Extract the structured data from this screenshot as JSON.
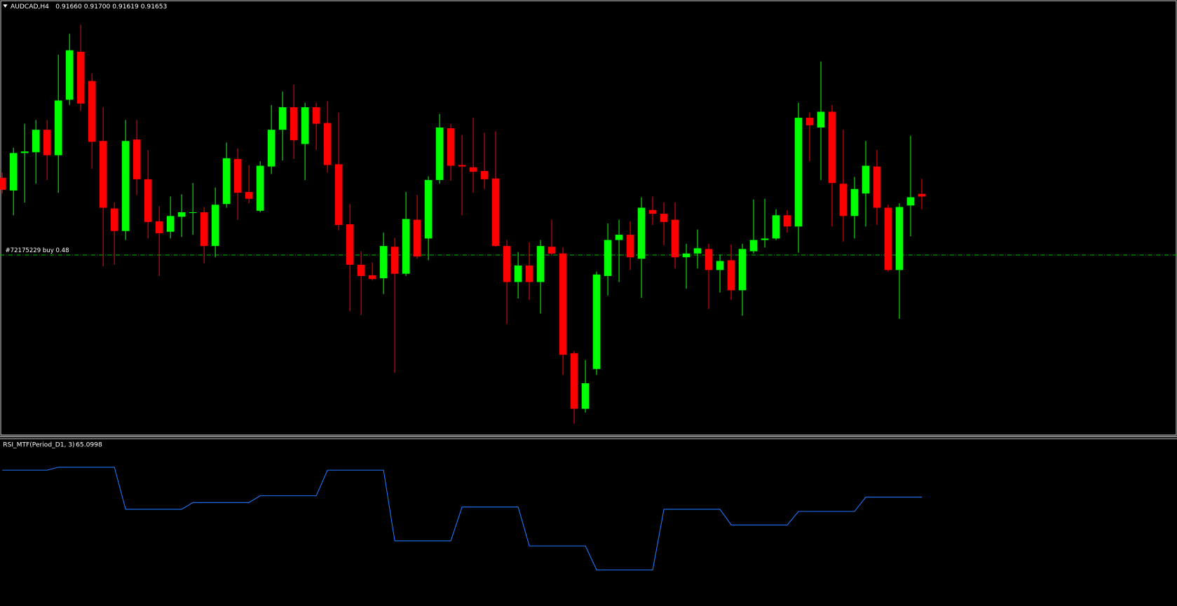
{
  "chart_data": [
    {
      "type": "candlestick",
      "symbol": "AUDCAD,H4",
      "quote": "0.91660 0.91700 0.91619 0.91653",
      "up_color": "#00ff00",
      "down_color": "#ff0000",
      "ylim": [
        0.91017,
        0.92177
      ],
      "open": [
        0.91703,
        0.91669,
        0.91769,
        0.91771,
        0.91831,
        0.91763,
        0.91911,
        0.92039,
        0.91961,
        0.91801,
        0.91621,
        0.91561,
        0.91805,
        0.91699,
        0.91587,
        0.91559,
        0.91599,
        0.91609,
        0.91611,
        0.91521,
        0.91633,
        0.91753,
        0.91665,
        0.91615,
        0.91733,
        0.91831,
        0.91891,
        0.91793,
        0.91891,
        0.91849,
        0.91739,
        0.91579,
        0.91471,
        0.91443,
        0.91435,
        0.91519,
        0.91447,
        0.91591,
        0.91541,
        0.91697,
        0.91835,
        0.91737,
        0.91731,
        0.91721,
        0.91701,
        0.91521,
        0.91425,
        0.91469,
        0.91425,
        0.91519,
        0.91501,
        0.91235,
        0.91087,
        0.91193,
        0.91441,
        0.91537,
        0.91551,
        0.91487,
        0.91617,
        0.91607,
        0.91591,
        0.91491,
        0.91501,
        0.91513,
        0.91457,
        0.91483,
        0.91403,
        0.91507,
        0.91537,
        0.91541,
        0.91603,
        0.91573,
        0.91863,
        0.91837,
        0.91879,
        0.91687,
        0.91601,
        0.91661,
        0.91733,
        0.91623,
        0.91457,
        0.91629,
        0.9166
      ],
      "high": [
        0.91717,
        0.91783,
        0.91847,
        0.91857,
        0.91857,
        0.92031,
        0.92087,
        0.92111,
        0.91981,
        0.91891,
        0.91637,
        0.91857,
        0.91857,
        0.91777,
        0.91627,
        0.91653,
        0.91659,
        0.91689,
        0.91625,
        0.91677,
        0.91797,
        0.91781,
        0.91737,
        0.91747,
        0.91897,
        0.91933,
        0.91951,
        0.91903,
        0.91903,
        0.91907,
        0.91877,
        0.91633,
        0.91507,
        0.91477,
        0.91557,
        0.91543,
        0.91665,
        0.91657,
        0.91707,
        0.91873,
        0.91847,
        0.91817,
        0.91863,
        0.91823,
        0.91827,
        0.91537,
        0.91505,
        0.91531,
        0.91537,
        0.91591,
        0.91517,
        0.91241,
        0.91217,
        0.91453,
        0.91581,
        0.91591,
        0.91587,
        0.91651,
        0.91653,
        0.91637,
        0.91637,
        0.91527,
        0.91565,
        0.91527,
        0.91497,
        0.91525,
        0.91527,
        0.91645,
        0.91647,
        0.91619,
        0.91617,
        0.91903,
        0.91877,
        0.92013,
        0.91897,
        0.91831,
        0.91705,
        0.91801,
        0.91777,
        0.91631,
        0.91635,
        0.91815,
        0.917
      ],
      "low": [
        0.91661,
        0.91603,
        0.91637,
        0.91687,
        0.91697,
        0.91663,
        0.91897,
        0.91881,
        0.91727,
        0.91467,
        0.91471,
        0.91537,
        0.91657,
        0.91541,
        0.91441,
        0.91541,
        0.91545,
        0.91551,
        0.91475,
        0.91491,
        0.91623,
        0.91591,
        0.91635,
        0.91611,
        0.91713,
        0.91749,
        0.91753,
        0.91697,
        0.91777,
        0.91717,
        0.91563,
        0.91347,
        0.91337,
        0.91429,
        0.91393,
        0.91183,
        0.91441,
        0.91487,
        0.91483,
        0.91687,
        0.91695,
        0.91603,
        0.91663,
        0.91673,
        0.91519,
        0.91313,
        0.91381,
        0.91377,
        0.91341,
        0.91497,
        0.91177,
        0.91047,
        0.91077,
        0.91177,
        0.91389,
        0.91425,
        0.91457,
        0.91383,
        0.91577,
        0.91523,
        0.91461,
        0.91407,
        0.91461,
        0.91353,
        0.91397,
        0.91377,
        0.91335,
        0.91501,
        0.91517,
        0.91537,
        0.91557,
        0.91503,
        0.91747,
        0.91697,
        0.91573,
        0.91533,
        0.91541,
        0.91573,
        0.91577,
        0.91453,
        0.91327,
        0.91547,
        0.91619
      ],
      "close": [
        0.91671,
        0.91769,
        0.91773,
        0.91831,
        0.91763,
        0.91909,
        0.92043,
        0.91901,
        0.91799,
        0.91623,
        0.91561,
        0.91801,
        0.91699,
        0.91585,
        0.91555,
        0.91601,
        0.91611,
        0.91611,
        0.91521,
        0.91631,
        0.91755,
        0.91663,
        0.91647,
        0.91735,
        0.91831,
        0.91891,
        0.91803,
        0.91891,
        0.91847,
        0.91737,
        0.91577,
        0.91471,
        0.91441,
        0.91433,
        0.91521,
        0.91447,
        0.91593,
        0.91493,
        0.91697,
        0.91837,
        0.91735,
        0.91733,
        0.91719,
        0.91699,
        0.91521,
        0.91425,
        0.91469,
        0.91425,
        0.91521,
        0.91501,
        0.91231,
        0.91087,
        0.91155,
        0.91445,
        0.91537,
        0.91551,
        0.91491,
        0.91623,
        0.91607,
        0.91585,
        0.91491,
        0.91501,
        0.91515,
        0.91457,
        0.91481,
        0.91403,
        0.91513,
        0.91537,
        0.91541,
        0.91603,
        0.91573,
        0.91863,
        0.91843,
        0.91879,
        0.91689,
        0.91601,
        0.91673,
        0.91735,
        0.91623,
        0.91457,
        0.91625,
        0.91651,
        0.91653
      ],
      "order_line": {
        "label": "#72175229 buy 0.48",
        "price": 0.91497,
        "color": "#00c000"
      }
    },
    {
      "type": "line",
      "title": "RSI_MTF(Period_D1, 3)",
      "ylim": [
        0,
        100
      ],
      "series": [
        {
          "color": "#1e78ff",
          "values": [
            81.4,
            81.4,
            81.4,
            81.4,
            81.4,
            83.2,
            83.2,
            83.2,
            83.2,
            83.2,
            83.2,
            57.7,
            57.7,
            57.7,
            57.7,
            57.7,
            57.7,
            61.8,
            61.8,
            61.8,
            61.8,
            61.8,
            61.8,
            65.9,
            65.9,
            65.9,
            65.9,
            65.9,
            65.9,
            81.4,
            81.4,
            81.4,
            81.4,
            81.4,
            81.4,
            38.6,
            38.6,
            38.6,
            38.6,
            38.6,
            38.6,
            59.1,
            59.1,
            59.1,
            59.1,
            59.1,
            59.1,
            35.5,
            35.5,
            35.5,
            35.5,
            35.5,
            35.5,
            20.9,
            20.9,
            20.9,
            20.9,
            20.9,
            20.9,
            57.7,
            57.7,
            57.7,
            57.7,
            57.7,
            57.7,
            48.2,
            48.2,
            48.2,
            48.2,
            48.2,
            48.2,
            56.4,
            56.4,
            56.4,
            56.4,
            56.4,
            56.4,
            65.0998,
            65.0998,
            65.0998,
            65.0998,
            65.0998,
            65.0998
          ]
        }
      ]
    }
  ]
}
